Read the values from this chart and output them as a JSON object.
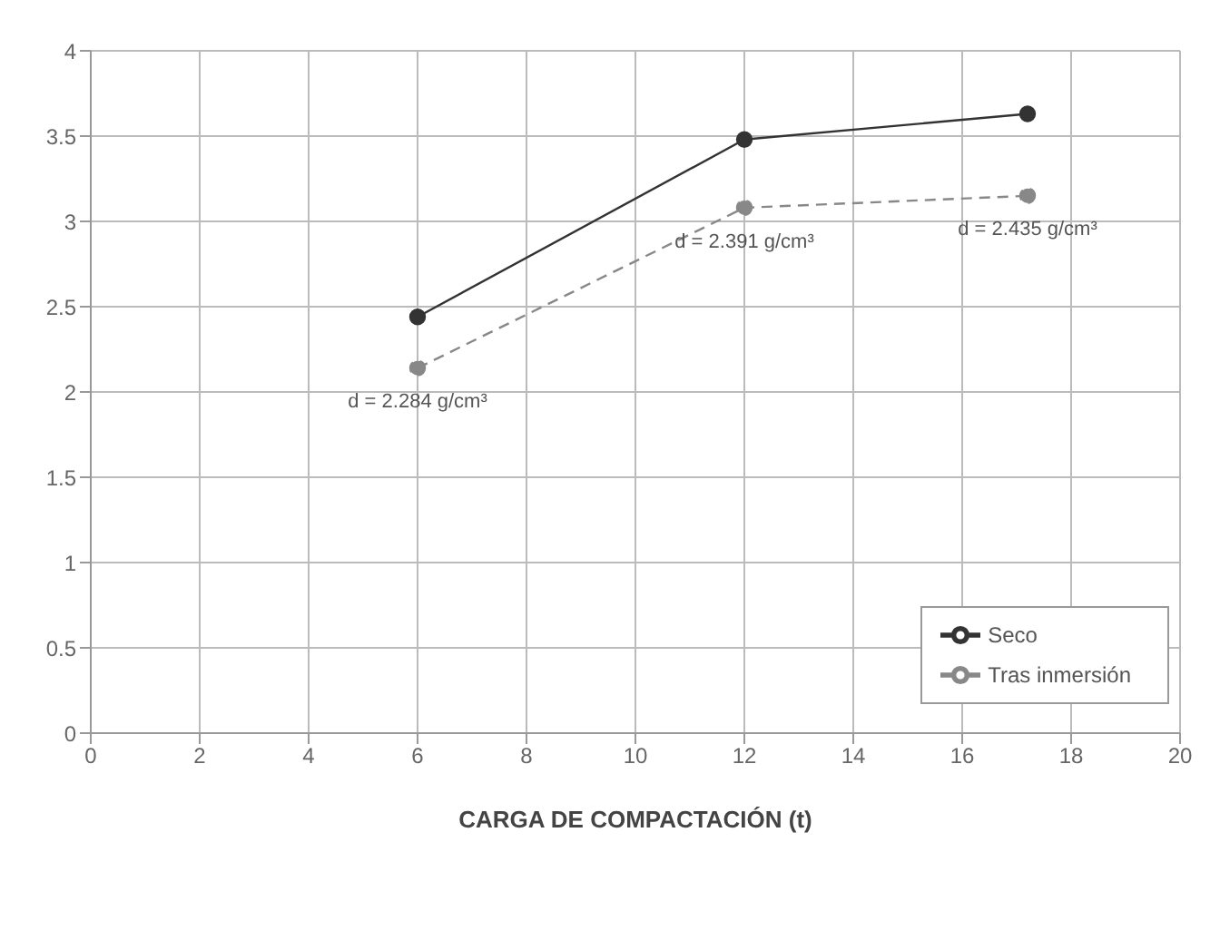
{
  "chart_data": {
    "type": "line",
    "xlabel": "CARGA DE COMPACTACIÓN (t)",
    "x": [
      6,
      12,
      17.2
    ],
    "series": [
      {
        "name": "Seco",
        "color": "#333333",
        "values": [
          2.44,
          3.48,
          3.63
        ],
        "line_style": "solid",
        "marker": "circle"
      },
      {
        "name": "Tras inmersión",
        "color": "#888888",
        "values": [
          2.14,
          3.08,
          3.15
        ],
        "line_style": "dashed",
        "marker": "circle"
      }
    ],
    "annotations": [
      {
        "text": "d = 2.284 g/cm³",
        "x": 6,
        "y": 2.14
      },
      {
        "text": "d = 2.391 g/cm³",
        "x": 12,
        "y": 3.08
      },
      {
        "text": "d = 2.435 g/cm³",
        "x": 17.2,
        "y": 3.15
      }
    ],
    "xlim": [
      0,
      20
    ],
    "xticks": [
      0,
      2,
      4,
      6,
      8,
      10,
      12,
      14,
      16,
      18,
      20
    ],
    "ylim": [
      0,
      4
    ],
    "yticks": [
      0,
      0.5,
      1,
      1.5,
      2,
      2.5,
      3,
      3.5,
      4
    ],
    "grid": true,
    "legend": "bottom right"
  }
}
